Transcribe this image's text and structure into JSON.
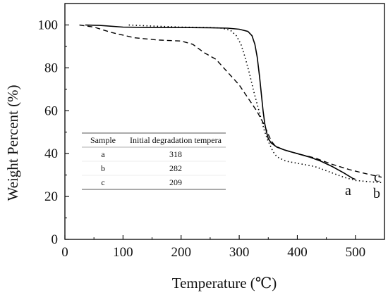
{
  "chart_data": {
    "type": "line",
    "title": "",
    "xlabel": "Temperature (℃)",
    "ylabel": "Weight Percent (%)",
    "xlim": [
      0,
      550
    ],
    "ylim": [
      0,
      110
    ],
    "x_ticks": [
      0,
      100,
      200,
      300,
      400,
      500
    ],
    "y_ticks": [
      0,
      20,
      40,
      60,
      80,
      100
    ],
    "grid": false,
    "legend": "none",
    "series": [
      {
        "name": "a",
        "line_style": "solid",
        "points": [
          [
            35,
            100
          ],
          [
            60,
            99.8
          ],
          [
            100,
            99
          ],
          [
            150,
            98.8
          ],
          [
            200,
            98.8
          ],
          [
            250,
            98.7
          ],
          [
            280,
            98.5
          ],
          [
            300,
            98
          ],
          [
            315,
            97
          ],
          [
            322,
            95
          ],
          [
            327,
            91
          ],
          [
            331,
            85
          ],
          [
            335,
            76
          ],
          [
            338,
            68
          ],
          [
            341,
            60
          ],
          [
            344,
            54
          ],
          [
            347,
            50
          ],
          [
            350,
            47
          ],
          [
            355,
            45
          ],
          [
            365,
            43
          ],
          [
            380,
            41.5
          ],
          [
            400,
            40
          ],
          [
            420,
            38.5
          ],
          [
            440,
            36.5
          ],
          [
            460,
            34
          ],
          [
            480,
            31
          ],
          [
            495,
            28.5
          ],
          [
            500,
            28
          ]
        ]
      },
      {
        "name": "b",
        "line_style": "dotted",
        "points": [
          [
            110,
            100
          ],
          [
            150,
            99.5
          ],
          [
            200,
            99
          ],
          [
            250,
            98.8
          ],
          [
            270,
            98.5
          ],
          [
            285,
            97.5
          ],
          [
            295,
            95
          ],
          [
            303,
            91
          ],
          [
            310,
            85
          ],
          [
            318,
            77
          ],
          [
            325,
            69
          ],
          [
            332,
            62
          ],
          [
            338,
            56
          ],
          [
            343,
            51
          ],
          [
            348,
            47
          ],
          [
            353,
            44
          ],
          [
            358,
            41
          ],
          [
            365,
            38.5
          ],
          [
            380,
            36.5
          ],
          [
            400,
            35.5
          ],
          [
            430,
            34
          ],
          [
            460,
            31
          ],
          [
            480,
            29
          ],
          [
            500,
            27.5
          ],
          [
            520,
            27
          ],
          [
            545,
            26.5
          ]
        ]
      },
      {
        "name": "c",
        "line_style": "dashed",
        "points": [
          [
            25,
            100
          ],
          [
            50,
            99
          ],
          [
            80,
            96.5
          ],
          [
            120,
            94
          ],
          [
            160,
            93
          ],
          [
            200,
            92.5
          ],
          [
            220,
            91
          ],
          [
            240,
            87
          ],
          [
            260,
            84
          ],
          [
            280,
            78
          ],
          [
            300,
            72
          ],
          [
            315,
            66
          ],
          [
            330,
            60
          ],
          [
            342,
            54
          ],
          [
            350,
            49
          ],
          [
            355,
            46
          ],
          [
            362,
            43.5
          ],
          [
            375,
            42
          ],
          [
            400,
            40
          ],
          [
            430,
            38
          ],
          [
            460,
            35
          ],
          [
            490,
            32.5
          ],
          [
            520,
            30.5
          ],
          [
            545,
            29
          ]
        ]
      }
    ],
    "end_labels": [
      "a",
      "b",
      "c"
    ],
    "inset_table": {
      "headers": [
        "Sample",
        "Initial degradation tempera"
      ],
      "rows": [
        [
          "a",
          "318"
        ],
        [
          "b",
          "282"
        ],
        [
          "c",
          "209"
        ]
      ]
    }
  }
}
